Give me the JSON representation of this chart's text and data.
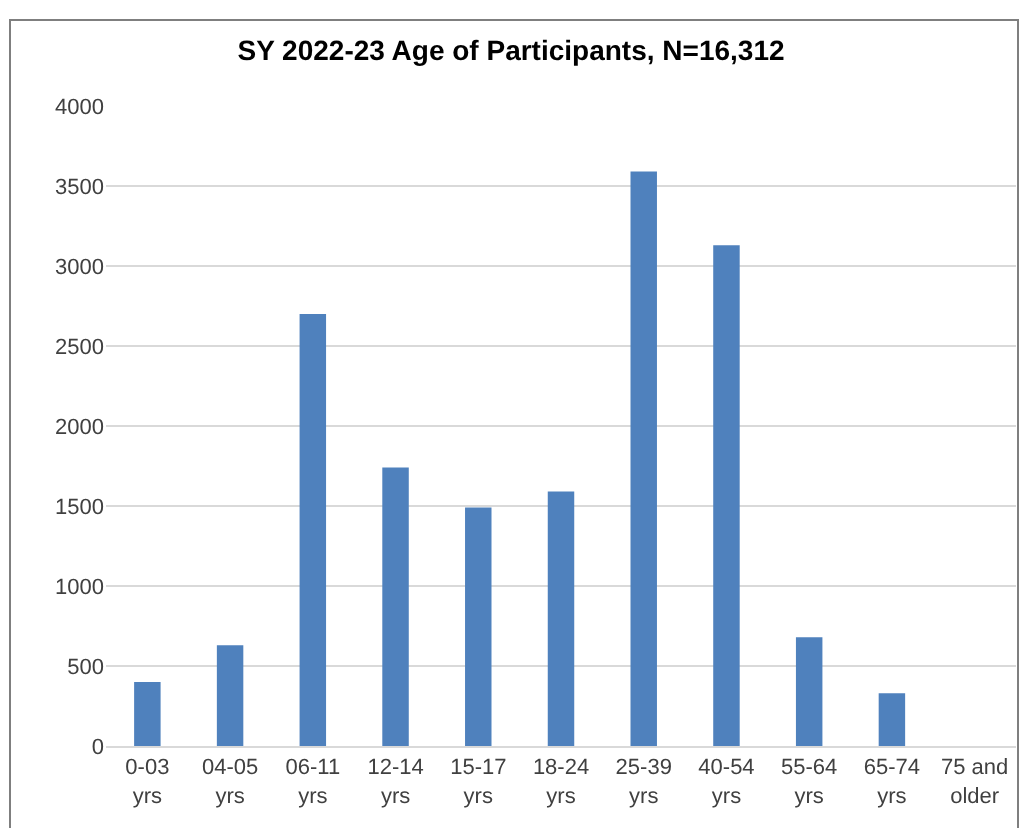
{
  "chart_data": {
    "type": "bar",
    "title": "SY 2022-23 Age of Participants, N=16,312",
    "categories": [
      "0-03 yrs",
      "04-05 yrs",
      "06-11 yrs",
      "12-14 yrs",
      "15-17 yrs",
      "18-24 yrs",
      "25-39 yrs",
      "40-54 yrs",
      "55-64 yrs",
      "65-74 yrs",
      "75 and older"
    ],
    "values": [
      400,
      630,
      2700,
      1740,
      1490,
      1590,
      3590,
      3130,
      680,
      330,
      0
    ],
    "color": "#4f81bd",
    "ylim": [
      0,
      4000
    ],
    "yticks": [
      0,
      500,
      1000,
      1500,
      2000,
      2500,
      3000,
      3500,
      4000
    ],
    "grid": "y",
    "legend": false
  }
}
